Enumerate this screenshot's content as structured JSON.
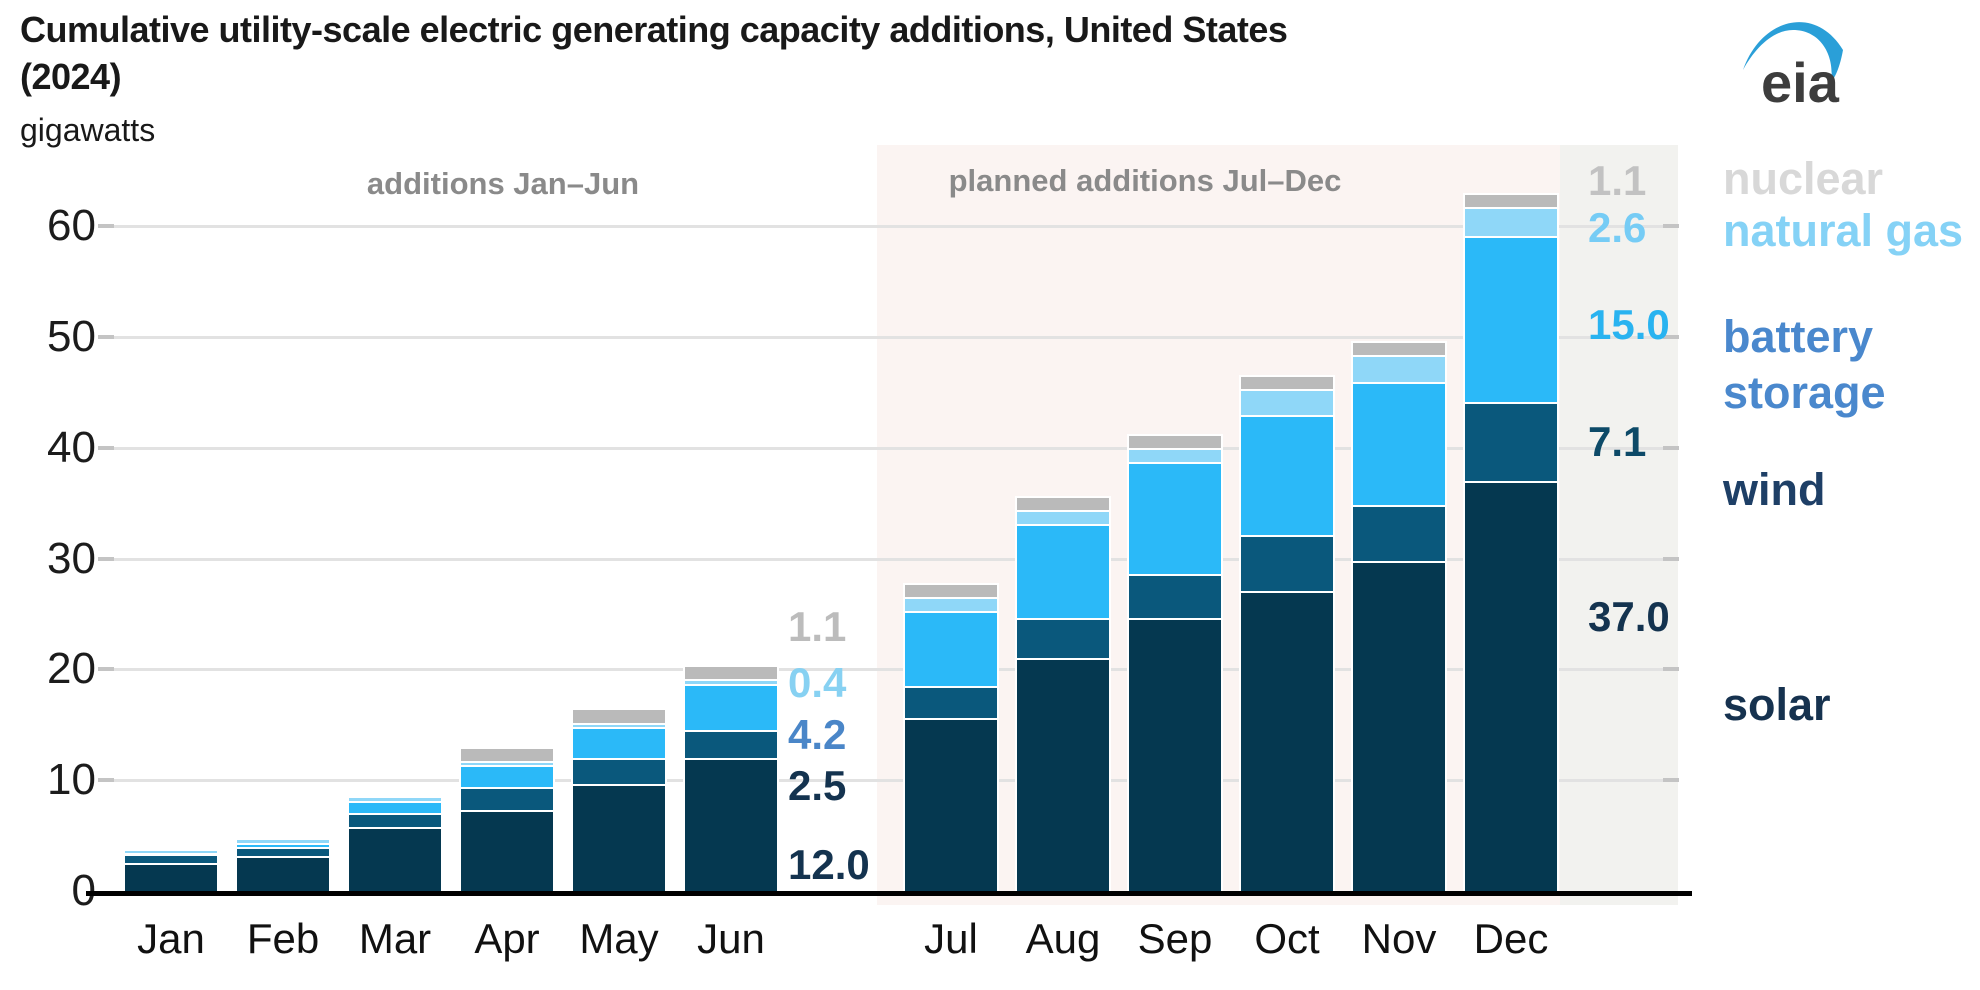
{
  "title": {
    "line1": "Cumulative utility-scale electric generating capacity additions, United States",
    "line2": "(2024)",
    "units": "gigawatts"
  },
  "logo": {
    "text": "eia",
    "swoosh_color": "#2a9fd8",
    "text_color": "#3d3d3d"
  },
  "sections": {
    "actual": "additions Jan–Jun",
    "planned": "planned additions Jul–Dec"
  },
  "y_axis": {
    "ticks": [
      0,
      10,
      20,
      30,
      40,
      50,
      60
    ]
  },
  "chart_data": {
    "type": "bar",
    "stacked": true,
    "title": "Cumulative utility-scale electric generating capacity additions, United States (2024)",
    "ylabel": "gigawatts",
    "ylim": [
      0,
      63
    ],
    "grid": "horizontal",
    "categories": [
      "Jan",
      "Feb",
      "Mar",
      "Apr",
      "May",
      "Jun",
      "Jul",
      "Aug",
      "Sep",
      "Oct",
      "Nov",
      "Dec"
    ],
    "series": [
      {
        "name": "solar",
        "color": "#053850",
        "values": [
          2.5,
          3.2,
          5.8,
          7.3,
          9.7,
          12.0,
          15.6,
          21.0,
          24.6,
          27.1,
          29.8,
          37.0
        ]
      },
      {
        "name": "wind",
        "color": "#0a587c",
        "values": [
          0.8,
          0.8,
          1.2,
          2.1,
          2.3,
          2.5,
          2.9,
          3.6,
          4.0,
          5.0,
          5.0,
          7.1
        ]
      },
      {
        "name": "battery storage",
        "color": "#2bb9f8",
        "values": [
          0.1,
          0.3,
          1.1,
          2.0,
          2.8,
          4.2,
          6.8,
          8.5,
          10.1,
          10.9,
          11.1,
          15.0
        ]
      },
      {
        "name": "natural gas",
        "color": "#8fd7f8",
        "values": [
          0.2,
          0.3,
          0.3,
          0.3,
          0.4,
          0.4,
          1.2,
          1.3,
          1.3,
          2.3,
          2.5,
          2.6
        ]
      },
      {
        "name": "nuclear",
        "color": "#bababa",
        "values": [
          0.0,
          0.0,
          0.0,
          1.1,
          1.1,
          1.1,
          1.1,
          1.1,
          1.1,
          1.1,
          1.1,
          1.1
        ]
      }
    ],
    "annotation_note": "value labels shown beside Jun and Dec bars, top-to-bottom nuclear/natural gas/battery storage/wind/solar"
  },
  "value_labels": {
    "jun": [
      {
        "text": "1.1",
        "color": "#bcbcbc"
      },
      {
        "text": "0.4",
        "color": "#87d1f2"
      },
      {
        "text": "4.2",
        "color": "#4a86c8"
      },
      {
        "text": "2.5",
        "color": "#14334f"
      },
      {
        "text": "12.0",
        "color": "#14334f"
      }
    ],
    "dec": [
      {
        "text": "1.1",
        "color": "#c2c2c2"
      },
      {
        "text": "2.6",
        "color": "#76ccf5"
      },
      {
        "text": "15.0",
        "color": "#29b3f0"
      },
      {
        "text": "7.1",
        "color": "#0d4a68"
      },
      {
        "text": "37.0",
        "color": "#14334f"
      }
    ]
  },
  "legend": {
    "items": [
      {
        "label": "nuclear",
        "color": "#d8d8d8"
      },
      {
        "label": "natural gas",
        "color": "#85d2f6"
      },
      {
        "label": "battery storage",
        "color": "#4a88cd"
      },
      {
        "label": "wind",
        "color": "#1e3f66"
      },
      {
        "label": "solar",
        "color": "#16324f"
      }
    ]
  }
}
